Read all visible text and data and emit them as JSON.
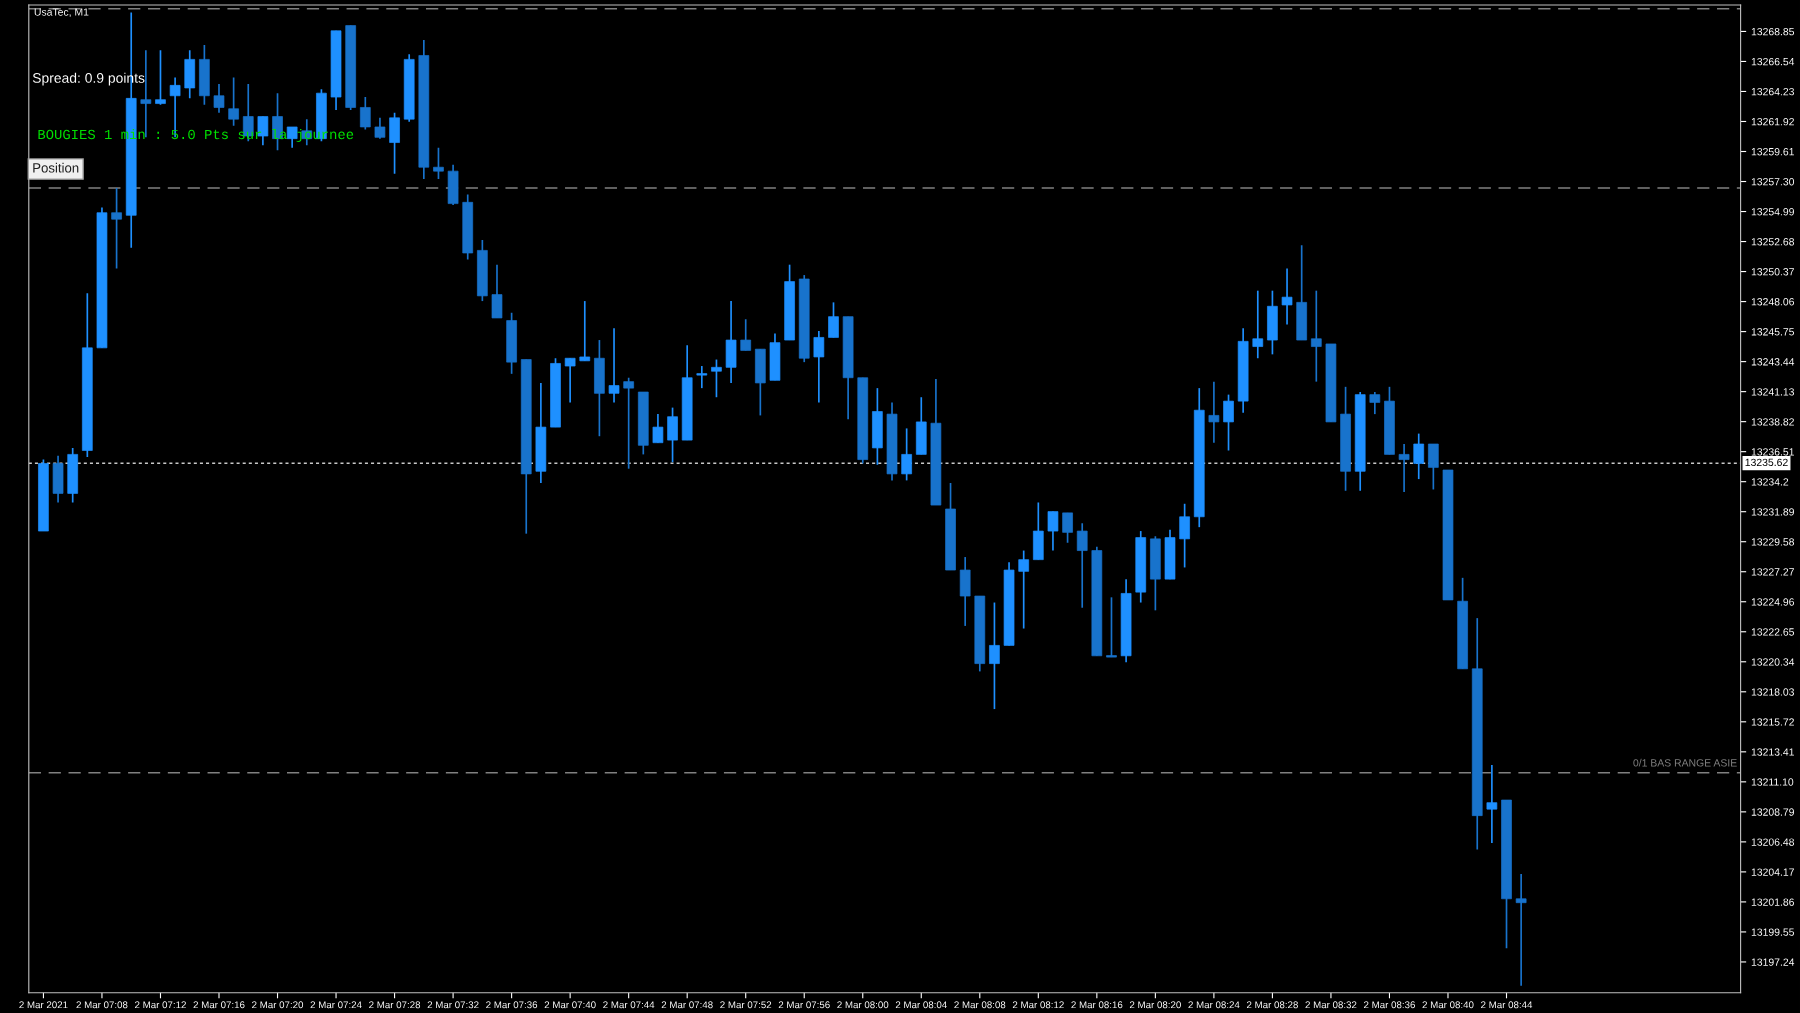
{
  "chart_data": {
    "type": "candlestick",
    "title": "UsaTec, M1",
    "colors": [
      "#1e90ff",
      "#1873cc",
      "#1e90ff",
      "#1e90ff",
      "#1e90ff",
      "#1873cc",
      "#1e90ff",
      "#1873cc",
      "#1e90ff",
      "#1e90ff",
      "#1e90ff",
      "#1873cc",
      "#1873cc",
      "#1873cc",
      "#1873cc",
      "#1e90ff",
      "#1873cc",
      "#1e90ff",
      "#1873cc",
      "#1e90ff",
      "#1e90ff",
      "#1873cc",
      "#1873cc",
      "#1873cc",
      "#1e90ff",
      "#1e90ff",
      "#1873cc",
      "#1873cc",
      "#1873cc",
      "#1873cc",
      "#1873cc",
      "#1873cc",
      "#1873cc",
      "#1873cc",
      "#1e90ff",
      "#1e90ff",
      "#1e90ff",
      "#1e90ff",
      "#1873cc",
      "#1e90ff",
      "#1873cc",
      "#1873cc",
      "#1e90ff",
      "#1e90ff",
      "#1e90ff",
      "#1e90ff",
      "#1e90ff",
      "#1e90ff",
      "#1873cc",
      "#1873cc",
      "#1e90ff",
      "#1e90ff",
      "#1873cc",
      "#1e90ff",
      "#1e90ff",
      "#1873cc",
      "#1873cc",
      "#1e90ff",
      "#1873cc",
      "#1e90ff",
      "#1e90ff",
      "#1873cc",
      "#1873cc",
      "#1873cc",
      "#1873cc",
      "#1e90ff",
      "#1e90ff",
      "#1e90ff",
      "#1e90ff",
      "#1e90ff",
      "#1873cc",
      "#1873cc",
      "#1873cc",
      "#1873cc",
      "#1e90ff",
      "#1e90ff",
      "#1873cc",
      "#1e90ff",
      "#1e90ff",
      "#1e90ff",
      "#1873cc",
      "#1e90ff",
      "#1e90ff",
      "#1e90ff",
      "#1e90ff",
      "#1e90ff",
      "#1873cc",
      "#1873cc",
      "#1873cc",
      "#1873cc",
      "#1e90ff",
      "#1873cc",
      "#1873cc",
      "#1873cc",
      "#1e90ff",
      "#1873cc",
      "#1873cc",
      "#1873cc",
      "#1873cc",
      "#1e90ff",
      "#1873cc",
      "#1873cc"
    ],
    "annotations": [
      "Spread: 0.9 points",
      "BOUGIES 1 min : 5.0 Pts sur la journee",
      "Position"
    ],
    "x": [
      "2021-03-02T07:04",
      "2021-03-02T07:05",
      "2021-03-02T07:06",
      "2021-03-02T07:07",
      "2021-03-02T07:08",
      "2021-03-02T07:09",
      "2021-03-02T07:10",
      "2021-03-02T07:11",
      "2021-03-02T07:12",
      "2021-03-02T07:13",
      "2021-03-02T07:14",
      "2021-03-02T07:15",
      "2021-03-02T07:16",
      "2021-03-02T07:17",
      "2021-03-02T07:18",
      "2021-03-02T07:19",
      "2021-03-02T07:20",
      "2021-03-02T07:21",
      "2021-03-02T07:22",
      "2021-03-02T07:23",
      "2021-03-02T07:24",
      "2021-03-02T07:25",
      "2021-03-02T07:26",
      "2021-03-02T07:27",
      "2021-03-02T07:28",
      "2021-03-02T07:29",
      "2021-03-02T07:30",
      "2021-03-02T07:31",
      "2021-03-02T07:32",
      "2021-03-02T07:33",
      "2021-03-02T07:34",
      "2021-03-02T07:35",
      "2021-03-02T07:36",
      "2021-03-02T07:37",
      "2021-03-02T07:38",
      "2021-03-02T07:39",
      "2021-03-02T07:40",
      "2021-03-02T07:41",
      "2021-03-02T07:42",
      "2021-03-02T07:43",
      "2021-03-02T07:44",
      "2021-03-02T07:45",
      "2021-03-02T07:46",
      "2021-03-02T07:47",
      "2021-03-02T07:48",
      "2021-03-02T07:49",
      "2021-03-02T07:50",
      "2021-03-02T07:51",
      "2021-03-02T07:52",
      "2021-03-02T07:53",
      "2021-03-02T07:54",
      "2021-03-02T07:55",
      "2021-03-02T07:56",
      "2021-03-02T07:57",
      "2021-03-02T07:58",
      "2021-03-02T07:59",
      "2021-03-02T08:00",
      "2021-03-02T08:01",
      "2021-03-02T08:02",
      "2021-03-02T08:03",
      "2021-03-02T08:04",
      "2021-03-02T08:05",
      "2021-03-02T08:06",
      "2021-03-02T08:07",
      "2021-03-02T08:08",
      "2021-03-02T08:09",
      "2021-03-02T08:10",
      "2021-03-02T08:11",
      "2021-03-02T08:12",
      "2021-03-02T08:13",
      "2021-03-02T08:14",
      "2021-03-02T08:15",
      "2021-03-02T08:16",
      "2021-03-02T08:17",
      "2021-03-02T08:18",
      "2021-03-02T08:19",
      "2021-03-02T08:20",
      "2021-03-02T08:21",
      "2021-03-02T08:22",
      "2021-03-02T08:23",
      "2021-03-02T08:24",
      "2021-03-02T08:25",
      "2021-03-02T08:26",
      "2021-03-02T08:27",
      "2021-03-02T08:28",
      "2021-03-02T08:29",
      "2021-03-02T08:30",
      "2021-03-02T08:31",
      "2021-03-02T08:32",
      "2021-03-02T08:33",
      "2021-03-02T08:34",
      "2021-03-02T08:35",
      "2021-03-02T08:36",
      "2021-03-02T08:37",
      "2021-03-02T08:38",
      "2021-03-02T08:39",
      "2021-03-02T08:40",
      "2021-03-02T08:41",
      "2021-03-02T08:42",
      "2021-03-02T08:43",
      "2021-03-02T08:44",
      "2021-03-02T08:45"
    ],
    "ohlc": [
      [
        13230.4,
        13235.9,
        13230.4,
        13235.6
      ],
      [
        13235.6,
        13236.2,
        13232.6,
        13233.3
      ],
      [
        13233.3,
        13236.8,
        13232.6,
        13236.3
      ],
      [
        13236.6,
        13248.7,
        13236.1,
        13244.5
      ],
      [
        13244.5,
        13255.3,
        13244.5,
        13254.9
      ],
      [
        13254.9,
        13256.8,
        13250.6,
        13254.4
      ],
      [
        13254.7,
        13270.3,
        13252.2,
        13263.7
      ],
      [
        13263.6,
        13267.4,
        13260.7,
        13263.3
      ],
      [
        13263.3,
        13267.4,
        13263.2,
        13263.6
      ],
      [
        13263.9,
        13265.3,
        13260.7,
        13264.7
      ],
      [
        13264.5,
        13267.4,
        13263.7,
        13266.7
      ],
      [
        13266.7,
        13267.8,
        13263.2,
        13263.9
      ],
      [
        13263.9,
        13264.8,
        13262.6,
        13263.0
      ],
      [
        13262.9,
        13265.3,
        13261.6,
        13262.1
      ],
      [
        13262.3,
        13264.8,
        13260.4,
        13260.8
      ],
      [
        13260.8,
        13262.3,
        13260.1,
        13262.3
      ],
      [
        13262.3,
        13264.1,
        13259.7,
        13260.6
      ],
      [
        13260.6,
        13261.5,
        13259.9,
        13261.5
      ],
      [
        13261.2,
        13262.1,
        13260.1,
        13260.6
      ],
      [
        13260.6,
        13264.4,
        13260.4,
        13264.1
      ],
      [
        13263.8,
        13268.9,
        13262.8,
        13268.9
      ],
      [
        13269.3,
        13269.3,
        13262.8,
        13263.0
      ],
      [
        13263.0,
        13263.8,
        13261.3,
        13261.5
      ],
      [
        13261.5,
        13262.2,
        13260.6,
        13260.7
      ],
      [
        13260.3,
        13262.6,
        13257.9,
        13262.2
      ],
      [
        13262.1,
        13267.1,
        13261.9,
        13266.7
      ],
      [
        13267.0,
        13268.2,
        13257.5,
        13258.4
      ],
      [
        13258.4,
        13259.9,
        13257.5,
        13258.1
      ],
      [
        13258.1,
        13258.6,
        13255.5,
        13255.6
      ],
      [
        13255.7,
        13256.3,
        13251.3,
        13251.8
      ],
      [
        13252.0,
        13252.8,
        13248.1,
        13248.5
      ],
      [
        13248.6,
        13250.9,
        13246.8,
        13246.8
      ],
      [
        13246.6,
        13247.2,
        13242.5,
        13243.4
      ],
      [
        13243.6,
        13243.6,
        13230.2,
        13234.8
      ],
      [
        13235.0,
        13241.8,
        13234.1,
        13238.4
      ],
      [
        13238.4,
        13243.7,
        13238.4,
        13243.3
      ],
      [
        13243.1,
        13243.7,
        13240.3,
        13243.7
      ],
      [
        13243.5,
        13248.1,
        13243.5,
        13243.8
      ],
      [
        13243.7,
        13245.1,
        13237.7,
        13241.0
      ],
      [
        13241.0,
        13246.0,
        13240.3,
        13241.6
      ],
      [
        13241.9,
        13242.2,
        13235.2,
        13241.4
      ],
      [
        13241.1,
        13241.1,
        13236.3,
        13237.0
      ],
      [
        13237.2,
        13239.4,
        13237.2,
        13238.4
      ],
      [
        13237.4,
        13239.9,
        13235.7,
        13239.2
      ],
      [
        13237.4,
        13244.7,
        13237.4,
        13242.2
      ],
      [
        13242.4,
        13243.1,
        13241.4,
        13242.5
      ],
      [
        13242.7,
        13243.6,
        13240.7,
        13243.0
      ],
      [
        13243.0,
        13248.1,
        13241.8,
        13245.1
      ],
      [
        13245.1,
        13246.7,
        13244.3,
        13244.3
      ],
      [
        13244.4,
        13244.4,
        13239.3,
        13241.8
      ],
      [
        13242.0,
        13245.6,
        13242.0,
        13244.9
      ],
      [
        13245.1,
        13250.9,
        13245.1,
        13249.6
      ],
      [
        13249.8,
        13250.1,
        13243.4,
        13243.7
      ],
      [
        13243.8,
        13245.8,
        13240.3,
        13245.3
      ],
      [
        13245.3,
        13248.0,
        13245.3,
        13246.9
      ],
      [
        13246.9,
        13246.9,
        13239.0,
        13242.2
      ],
      [
        13242.2,
        13242.2,
        13235.6,
        13235.9
      ],
      [
        13236.8,
        13241.4,
        13235.5,
        13239.6
      ],
      [
        13239.4,
        13240.3,
        13234.3,
        13234.8
      ],
      [
        13234.8,
        13238.3,
        13234.3,
        13236.3
      ],
      [
        13236.3,
        13240.7,
        13236.3,
        13238.8
      ],
      [
        13238.7,
        13242.1,
        13232.4,
        13232.4
      ],
      [
        13232.1,
        13234.1,
        13227.4,
        13227.4
      ],
      [
        13227.4,
        13228.4,
        13223.1,
        13225.4
      ],
      [
        13225.4,
        13225.4,
        13219.6,
        13220.2
      ],
      [
        13220.2,
        13224.9,
        13216.7,
        13221.6
      ],
      [
        13221.6,
        13228.0,
        13221.6,
        13227.4
      ],
      [
        13227.3,
        13228.9,
        13222.9,
        13228.2
      ],
      [
        13228.2,
        13232.6,
        13228.2,
        13230.4
      ],
      [
        13230.4,
        13231.9,
        13228.9,
        13231.9
      ],
      [
        13231.8,
        13231.8,
        13229.5,
        13230.3
      ],
      [
        13230.4,
        13231.0,
        13224.5,
        13228.9
      ],
      [
        13228.9,
        13229.2,
        13220.8,
        13220.8
      ],
      [
        13220.8,
        13225.3,
        13220.7,
        13220.7
      ],
      [
        13220.8,
        13226.7,
        13220.3,
        13225.6
      ],
      [
        13225.7,
        13230.4,
        13224.9,
        13229.9
      ],
      [
        13229.8,
        13230.0,
        13224.3,
        13226.7
      ],
      [
        13226.7,
        13230.5,
        13226.7,
        13229.9
      ],
      [
        13229.8,
        13232.5,
        13227.6,
        13231.5
      ],
      [
        13231.5,
        13241.4,
        13230.7,
        13239.7
      ],
      [
        13239.3,
        13241.9,
        13237.2,
        13238.8
      ],
      [
        13238.8,
        13240.9,
        13236.6,
        13240.4
      ],
      [
        13240.4,
        13246.0,
        13239.5,
        13245.0
      ],
      [
        13244.6,
        13248.9,
        13243.7,
        13245.2
      ],
      [
        13245.1,
        13248.9,
        13244.0,
        13247.7
      ],
      [
        13247.8,
        13250.6,
        13246.3,
        13248.4
      ],
      [
        13248.0,
        13252.4,
        13245.1,
        13245.1
      ],
      [
        13245.2,
        13248.9,
        13241.9,
        13244.6
      ],
      [
        13244.8,
        13244.8,
        13238.8,
        13238.8
      ],
      [
        13239.4,
        13241.5,
        13233.5,
        13235.0
      ],
      [
        13235.0,
        13241.1,
        13233.5,
        13240.9
      ],
      [
        13240.9,
        13241.1,
        13239.4,
        13240.3
      ],
      [
        13240.4,
        13241.5,
        13236.3,
        13236.3
      ],
      [
        13236.3,
        13237.1,
        13233.4,
        13235.9
      ],
      [
        13235.6,
        13237.9,
        13234.4,
        13237.1
      ],
      [
        13237.1,
        13237.1,
        13233.6,
        13235.3
      ],
      [
        13235.1,
        13235.1,
        13225.1,
        13225.1
      ],
      [
        13225.0,
        13226.8,
        13219.8,
        13219.8
      ],
      [
        13219.8,
        13223.7,
        13205.9,
        13208.5
      ],
      [
        13209.0,
        13212.4,
        13206.4,
        13209.5
      ],
      [
        13209.7,
        13209.7,
        13198.3,
        13202.1
      ],
      [
        13202.1,
        13204.0,
        13195.4,
        13201.8
      ]
    ],
    "xlim": [
      "2021-03-02T07:03",
      "2021-03-02T09:00"
    ],
    "xticks": [
      {
        "value": "2021-03-02T07:04",
        "label": "2 Mar 2021"
      },
      {
        "value": "2021-03-02T07:08",
        "label": "2 Mar 07:08"
      },
      {
        "value": "2021-03-02T07:12",
        "label": "2 Mar 07:12"
      },
      {
        "value": "2021-03-02T07:16",
        "label": "2 Mar 07:16"
      },
      {
        "value": "2021-03-02T07:20",
        "label": "2 Mar 07:20"
      },
      {
        "value": "2021-03-02T07:24",
        "label": "2 Mar 07:24"
      },
      {
        "value": "2021-03-02T07:28",
        "label": "2 Mar 07:28"
      },
      {
        "value": "2021-03-02T07:32",
        "label": "2 Mar 07:32"
      },
      {
        "value": "2021-03-02T07:36",
        "label": "2 Mar 07:36"
      },
      {
        "value": "2021-03-02T07:40",
        "label": "2 Mar 07:40"
      },
      {
        "value": "2021-03-02T07:44",
        "label": "2 Mar 07:44"
      },
      {
        "value": "2021-03-02T07:48",
        "label": "2 Mar 07:48"
      },
      {
        "value": "2021-03-02T07:52",
        "label": "2 Mar 07:52"
      },
      {
        "value": "2021-03-02T07:56",
        "label": "2 Mar 07:56"
      },
      {
        "value": "2021-03-02T08:00",
        "label": "2 Mar 08:00"
      },
      {
        "value": "2021-03-02T08:04",
        "label": "2 Mar 08:04"
      },
      {
        "value": "2021-03-02T08:08",
        "label": "2 Mar 08:08"
      },
      {
        "value": "2021-03-02T08:12",
        "label": "2 Mar 08:12"
      },
      {
        "value": "2021-03-02T08:16",
        "label": "2 Mar 08:16"
      },
      {
        "value": "2021-03-02T08:20",
        "label": "2 Mar 08:20"
      },
      {
        "value": "2021-03-02T08:24",
        "label": "2 Mar 08:24"
      },
      {
        "value": "2021-03-02T08:28",
        "label": "2 Mar 08:28"
      },
      {
        "value": "2021-03-02T08:32",
        "label": "2 Mar 08:32"
      },
      {
        "value": "2021-03-02T08:36",
        "label": "2 Mar 08:36"
      },
      {
        "value": "2021-03-02T08:40",
        "label": "2 Mar 08:40"
      },
      {
        "value": "2021-03-02T08:44",
        "label": "2 Mar 08:44"
      }
    ],
    "ylim": [
      13194.87,
      13270.88
    ],
    "yticks": [
      13197.24,
      13199.55,
      13201.86,
      13204.17,
      13206.48,
      13208.79,
      {
        "value": 13211.1,
        "label": "13211.10"
      },
      13213.41,
      13215.72,
      13218.03,
      13220.34,
      13222.65,
      13224.96,
      13227.27,
      13229.58,
      13231.89,
      13234.2,
      13236.51,
      13238.82,
      13241.13,
      13243.44,
      13245.75,
      13248.06,
      13250.37,
      13252.68,
      13254.99,
      {
        "value": 13257.3,
        "label": "13257.30"
      },
      13259.61,
      13261.92,
      13264.23,
      13266.54,
      13268.85
    ],
    "ref_lines": [
      {
        "axis": "y",
        "value": 13270.6,
        "color": "#808080",
        "line_style": "dashed"
      },
      {
        "axis": "y",
        "value": 13256.8,
        "color": "#808080",
        "line_style": "dashed"
      },
      {
        "axis": "y",
        "value": 13235.62,
        "label": "13235.62",
        "color": "#c8c8c8",
        "line_style": "dotted"
      },
      {
        "axis": "y",
        "value": 13211.8,
        "label": "0/1 BAS RANGE ASIE",
        "color": "#808080",
        "line_style": "dashed"
      }
    ]
  }
}
